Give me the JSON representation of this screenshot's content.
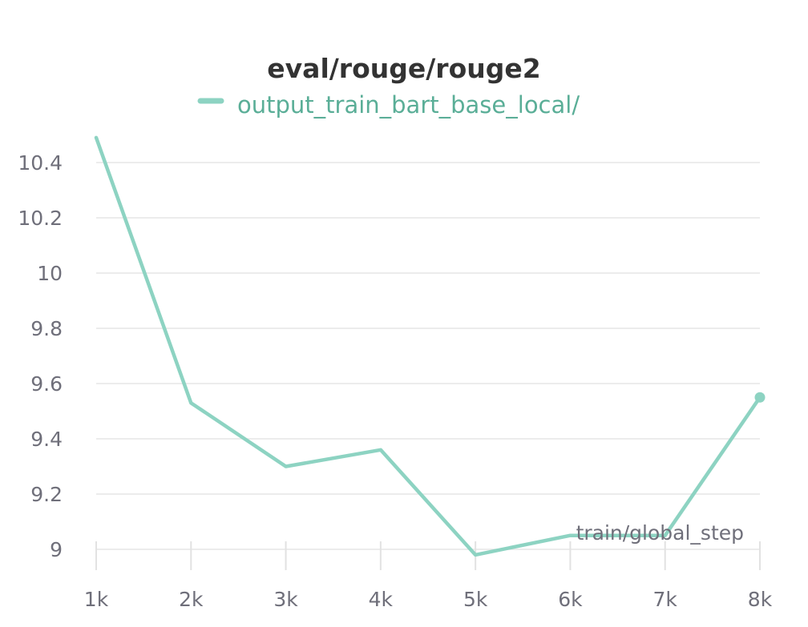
{
  "chart_data": {
    "type": "line",
    "title": "eval/rouge/rouge2",
    "xlabel": "train/global_step",
    "ylabel": "",
    "x": [
      1000,
      2000,
      3000,
      4000,
      5000,
      6000,
      7000,
      8000
    ],
    "x_tick_labels": [
      "1k",
      "2k",
      "3k",
      "4k",
      "5k",
      "6k",
      "7k",
      "8k"
    ],
    "y_tick_labels": [
      "9",
      "9.2",
      "9.4",
      "9.6",
      "9.8",
      "10",
      "10.2",
      "10.4"
    ],
    "y_ticks": [
      9,
      9.2,
      9.4,
      9.6,
      9.8,
      10,
      10.2,
      10.4
    ],
    "xlim": [
      1000,
      8000
    ],
    "ylim": [
      8.98,
      10.5
    ],
    "grid": true,
    "legend_position": "top",
    "series": [
      {
        "name": "output_train_bart_base_local/",
        "color": "#8dd3c2",
        "legend_text_color": "#5aae97",
        "values": [
          10.49,
          9.53,
          9.3,
          9.36,
          8.98,
          9.05,
          9.05,
          9.55
        ]
      }
    ]
  }
}
